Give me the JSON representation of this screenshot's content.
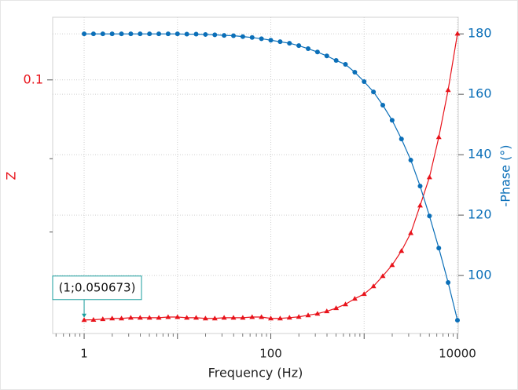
{
  "chart_data": {
    "type": "line",
    "x_label": "Frequency (Hz)",
    "y_label": "Z",
    "y2_label": "-Phase (°)",
    "x_log": true,
    "y_log": true,
    "xlim": [
      0.46,
      10200
    ],
    "xticks": [
      1,
      100,
      10000
    ],
    "xgrid": [
      1,
      10,
      100,
      1000,
      10000
    ],
    "ylim": [
      0.04877,
      0.1194
    ],
    "yticks": [
      0.1
    ],
    "yminor_ticks": [
      0.08,
      0.065
    ],
    "y2lim": [
      80.8,
      185.5
    ],
    "y2ticks": [
      100,
      120,
      140,
      160,
      180
    ],
    "grid": true,
    "annotation": {
      "text": "(1;0.050673)",
      "x": 1,
      "y": 0.050673
    },
    "x": [
      1,
      1.259,
      1.585,
      1.995,
      2.512,
      3.162,
      3.981,
      5.012,
      6.31,
      7.943,
      10,
      12.59,
      15.85,
      19.95,
      25.12,
      31.62,
      39.81,
      50.12,
      63.1,
      79.43,
      100,
      125.9,
      158.5,
      199.5,
      251.2,
      316.2,
      398.1,
      501.2,
      631,
      794.3,
      1000,
      1259,
      1585,
      1995,
      2512,
      3162,
      3981,
      5012,
      6310,
      7943,
      10000
    ],
    "series": [
      {
        "name": "Z",
        "color": "#e8131b",
        "marker": "triangle",
        "axis": "y",
        "values": [
          0.050673,
          0.0507,
          0.0508,
          0.0509,
          0.0509,
          0.051,
          0.051,
          0.051,
          0.051,
          0.0511,
          0.0511,
          0.051,
          0.051,
          0.0509,
          0.0509,
          0.051,
          0.051,
          0.051,
          0.0511,
          0.0511,
          0.0509,
          0.0509,
          0.05101,
          0.05113,
          0.05136,
          0.05159,
          0.05194,
          0.0524,
          0.05298,
          0.05382,
          0.05454,
          0.05575,
          0.05739,
          0.0592,
          0.06162,
          0.06482,
          0.07007,
          0.07591,
          0.08503,
          0.09716,
          0.11399
        ]
      },
      {
        "name": "-Phase",
        "color": "#0b6fb8",
        "marker": "circle",
        "axis": "y2",
        "values": [
          180,
          180,
          180,
          180,
          180,
          180,
          180,
          180,
          180,
          180,
          180,
          179.9,
          179.9,
          179.8,
          179.7,
          179.5,
          179.4,
          179.1,
          178.8,
          178.4,
          177.9,
          177.4,
          176.9,
          176.1,
          175.1,
          174.0,
          172.7,
          171.2,
          169.9,
          167.3,
          164.2,
          160.8,
          156.4,
          151.4,
          145.2,
          138.2,
          129.6,
          119.7,
          109.1,
          97.7,
          85.2
        ]
      }
    ]
  }
}
